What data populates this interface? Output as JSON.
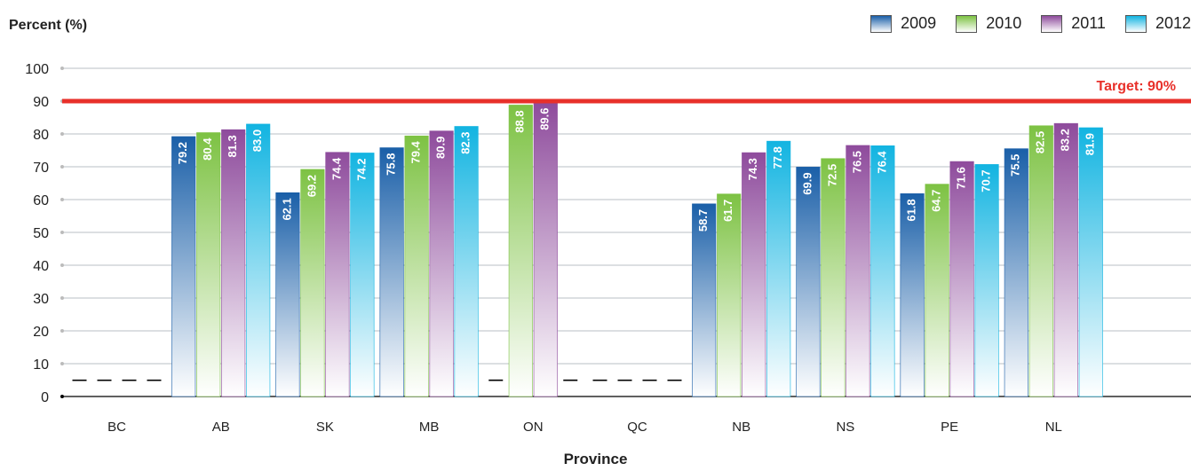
{
  "chart_data": {
    "type": "bar",
    "ylabel": "Percent (%)",
    "xlabel": "Province",
    "ylim": [
      0,
      100
    ],
    "yticks": [
      0,
      10,
      20,
      30,
      40,
      50,
      60,
      70,
      80,
      90,
      100
    ],
    "categories": [
      "BC",
      "AB",
      "SK",
      "MB",
      "ON",
      "QC",
      "NB",
      "NS",
      "PE",
      "NL"
    ],
    "series": [
      {
        "name": "2009",
        "color": "#1a5fa8",
        "values": [
          null,
          79.2,
          62.1,
          75.8,
          null,
          null,
          58.7,
          69.9,
          61.8,
          75.5
        ]
      },
      {
        "name": "2010",
        "color": "#7dc243",
        "values": [
          null,
          80.4,
          69.2,
          79.4,
          88.8,
          null,
          61.7,
          72.5,
          64.7,
          82.5
        ]
      },
      {
        "name": "2011",
        "color": "#8e4b9c",
        "values": [
          null,
          81.3,
          74.4,
          80.9,
          89.6,
          null,
          74.3,
          76.5,
          71.6,
          83.2
        ]
      },
      {
        "name": "2012",
        "color": "#12b4e1",
        "values": [
          null,
          83.0,
          74.2,
          82.3,
          null,
          null,
          77.8,
          76.4,
          70.7,
          81.9
        ]
      }
    ],
    "missing_marker": "—",
    "target": {
      "value": 90,
      "label": "Target: 90%",
      "color": "#e8302a"
    },
    "grid": true,
    "legend_position": "top-right"
  }
}
